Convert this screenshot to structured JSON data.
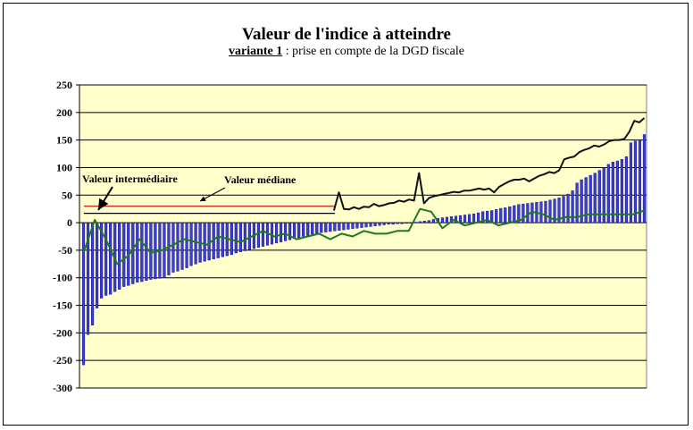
{
  "chart_data": {
    "type": "bar",
    "title": "Valeur de l'indice à atteindre",
    "subtitle_underlined": "variante 1",
    "subtitle_rest": " : prise en compte de la DGD fiscale",
    "xlabel": "",
    "ylabel": "",
    "ylim": [
      -300,
      250
    ],
    "yticks": [
      "250",
      "200",
      "150",
      "100",
      "50",
      "0",
      "-50",
      "-100",
      "-150",
      "-200",
      "-250",
      "-300"
    ],
    "grid": true,
    "legend": "none",
    "colors": {
      "plot_background": "#ffffcc",
      "bars": "#3b3bd6",
      "bar_edge": "#00008b",
      "line_green": "#1e7a1e",
      "line_black": "#111111",
      "median_line": "#c83232",
      "intermediate_line": "#000000",
      "grid": "#000000"
    },
    "bars": [
      -258,
      -203,
      -186,
      -155,
      -137,
      -132,
      -130,
      -125,
      -121,
      -116,
      -114,
      -111,
      -108,
      -107,
      -105,
      -103,
      -102,
      -101,
      -100,
      -95,
      -90,
      -88,
      -85,
      -82,
      -78,
      -75,
      -72,
      -70,
      -68,
      -66,
      -64,
      -62,
      -60,
      -58,
      -55,
      -53,
      -51,
      -49,
      -47,
      -45,
      -43,
      -41,
      -39,
      -37,
      -35,
      -33,
      -31,
      -29,
      -27,
      -25,
      -23,
      -21,
      -19,
      -18,
      -17,
      -16,
      -15,
      -14,
      -13,
      -12,
      -11,
      -10,
      -9,
      -8,
      -7,
      -6,
      -5,
      -4,
      -3,
      -3,
      -2,
      -2,
      -1,
      -1,
      1,
      2,
      3,
      4,
      6,
      8,
      9,
      10,
      11,
      12,
      13,
      14,
      15,
      16,
      18,
      20,
      21,
      22,
      24,
      26,
      27,
      29,
      31,
      33,
      34,
      35,
      36,
      37,
      38,
      39,
      41,
      43,
      45,
      48,
      52,
      58,
      72,
      78,
      82,
      86,
      90,
      95,
      100,
      106,
      110,
      112,
      115,
      120,
      145,
      148,
      150,
      160
    ],
    "series": [
      {
        "values": [
          -55,
          5,
          -30,
          -75,
          -60,
          -30,
          -55,
          -50,
          -40,
          -30,
          -35,
          -40,
          -25,
          -30,
          -35,
          -25,
          -15,
          -25,
          -20,
          -30,
          -25,
          -20,
          -30,
          -20,
          -25,
          -15,
          -20,
          -20,
          -15,
          -15,
          25,
          20,
          -10,
          5,
          -5,
          0,
          5,
          -5,
          0,
          5,
          20,
          15,
          5,
          10,
          10,
          15,
          15,
          15,
          15,
          15,
          22
        ]
      },
      {
        "start_index": 50,
        "values": [
          22,
          55,
          25,
          24,
          28,
          25,
          29,
          28,
          34,
          30,
          32,
          35,
          36,
          40,
          38,
          42,
          40,
          90,
          35,
          45,
          48,
          50,
          52,
          54,
          56,
          55,
          58,
          58,
          60,
          62,
          60,
          62,
          55,
          65,
          70,
          75,
          78,
          78,
          80,
          75,
          80,
          85,
          88,
          92,
          90,
          95,
          115,
          118,
          120,
          128,
          132,
          135,
          140,
          138,
          142,
          148,
          150,
          150,
          152,
          165,
          185,
          182,
          190
        ]
      }
    ],
    "reference_lines": [
      {
        "name": "Valeur médiane",
        "value": 30
      },
      {
        "name": "Valeur intermédiaire",
        "value": 17
      }
    ]
  }
}
